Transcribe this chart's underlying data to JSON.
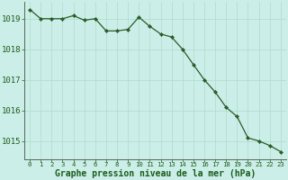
{
  "x": [
    0,
    1,
    2,
    3,
    4,
    5,
    6,
    7,
    8,
    9,
    10,
    11,
    12,
    13,
    14,
    15,
    16,
    17,
    18,
    19,
    20,
    21,
    22,
    23
  ],
  "y": [
    1019.3,
    1019.0,
    1019.0,
    1019.0,
    1019.1,
    1018.95,
    1019.0,
    1018.6,
    1018.6,
    1018.65,
    1019.05,
    1018.75,
    1018.5,
    1018.4,
    1018.0,
    1017.5,
    1017.0,
    1016.6,
    1016.1,
    1015.8,
    1015.1,
    1015.0,
    1014.85,
    1014.65
  ],
  "line_color": "#2a5c2a",
  "marker_color": "#2a5c2a",
  "bg_color": "#cceee8",
  "grid_color": "#aaddcc",
  "xlabel": "Graphe pression niveau de la mer (hPa)",
  "xlabel_color": "#1a5c1a",
  "tick_color": "#1a5c1a",
  "axis_color": "#556655",
  "ylim": [
    1014.4,
    1019.55
  ],
  "xlim": [
    -0.5,
    23.5
  ],
  "yticks": [
    1015,
    1016,
    1017,
    1018,
    1019
  ],
  "xticks": [
    0,
    1,
    2,
    3,
    4,
    5,
    6,
    7,
    8,
    9,
    10,
    11,
    12,
    13,
    14,
    15,
    16,
    17,
    18,
    19,
    20,
    21,
    22,
    23
  ],
  "ytick_fontsize": 6.5,
  "xtick_fontsize": 5.2,
  "xlabel_fontsize": 7.0,
  "linewidth": 0.9,
  "markersize": 2.2
}
